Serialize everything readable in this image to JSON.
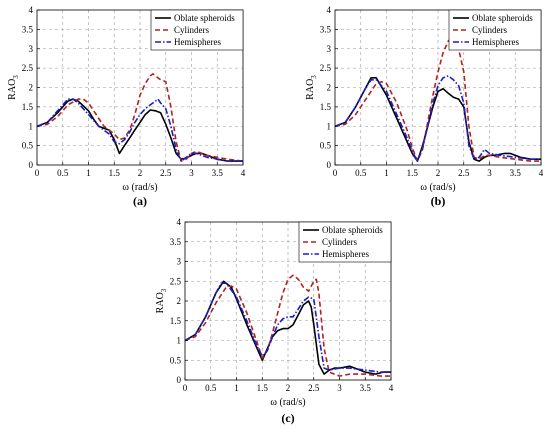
{
  "chart_data": [
    {
      "type": "line",
      "panel_label": "(a)",
      "xlabel": "ω (rad/s)",
      "ylabel": "RAO",
      "ylabel_sub": "3",
      "xlim": [
        0,
        4
      ],
      "ylim": [
        0,
        4
      ],
      "xticks": [
        "0",
        "0.5",
        "1",
        "1.5",
        "2",
        "2.5",
        "3",
        "3.5",
        "4"
      ],
      "yticks": [
        "0",
        "0.5",
        "1",
        "1.5",
        "2",
        "2.5",
        "3",
        "3.5",
        "4"
      ],
      "grid": true,
      "legend_position": "top-right",
      "series": [
        {
          "name": "Oblate spheroids",
          "color": "#000000",
          "dash": "solid",
          "x": [
            0,
            0.2,
            0.4,
            0.6,
            0.7,
            0.8,
            1.0,
            1.1,
            1.2,
            1.3,
            1.4,
            1.5,
            1.6,
            1.7,
            1.8,
            1.9,
            2.0,
            2.1,
            2.2,
            2.3,
            2.4,
            2.5,
            2.6,
            2.7,
            2.8,
            2.9,
            3.0,
            3.1,
            3.2,
            3.3,
            3.5,
            3.7,
            3.85,
            4.0
          ],
          "y": [
            1.0,
            1.1,
            1.35,
            1.65,
            1.7,
            1.65,
            1.4,
            1.18,
            1.0,
            0.95,
            0.9,
            0.65,
            0.3,
            0.5,
            0.7,
            0.9,
            1.1,
            1.3,
            1.42,
            1.4,
            1.35,
            1.05,
            0.7,
            0.3,
            0.15,
            0.18,
            0.25,
            0.3,
            0.3,
            0.25,
            0.15,
            0.1,
            0.1,
            0.1
          ]
        },
        {
          "name": "Cylinders",
          "color": "#b22222",
          "dash": "dashed",
          "x": [
            0,
            0.2,
            0.4,
            0.6,
            0.8,
            0.9,
            1.0,
            1.2,
            1.3,
            1.5,
            1.6,
            1.7,
            1.8,
            1.9,
            2.0,
            2.1,
            2.2,
            2.25,
            2.3,
            2.4,
            2.5,
            2.6,
            2.7,
            2.8,
            2.9,
            3.0,
            3.1,
            3.2,
            3.3,
            3.5,
            3.7,
            4.0
          ],
          "y": [
            1.0,
            1.05,
            1.25,
            1.55,
            1.7,
            1.7,
            1.6,
            1.2,
            1.0,
            0.8,
            0.65,
            0.7,
            0.9,
            1.3,
            1.8,
            2.1,
            2.3,
            2.35,
            2.3,
            2.2,
            2.15,
            1.5,
            0.6,
            0.1,
            0.15,
            0.3,
            0.35,
            0.3,
            0.25,
            0.2,
            0.15,
            0.1
          ]
        },
        {
          "name": "Hemispheres",
          "color": "#1c1cc8",
          "dash": "dashdot",
          "x": [
            0,
            0.2,
            0.4,
            0.6,
            0.7,
            0.8,
            1.0,
            1.2,
            1.4,
            1.5,
            1.6,
            1.7,
            1.8,
            1.9,
            2.0,
            2.1,
            2.2,
            2.3,
            2.35,
            2.4,
            2.5,
            2.6,
            2.7,
            2.8,
            2.9,
            3.0,
            3.1,
            3.2,
            3.3,
            3.5,
            3.7,
            4.0
          ],
          "y": [
            1.0,
            1.1,
            1.4,
            1.7,
            1.7,
            1.6,
            1.3,
            1.0,
            0.8,
            0.6,
            0.55,
            0.65,
            0.85,
            1.1,
            1.3,
            1.45,
            1.55,
            1.65,
            1.7,
            1.6,
            1.45,
            1.0,
            0.4,
            0.1,
            0.2,
            0.3,
            0.3,
            0.25,
            0.2,
            0.15,
            0.1,
            0.1
          ]
        }
      ]
    },
    {
      "type": "line",
      "panel_label": "(b)",
      "xlabel": "ω (rad/s)",
      "ylabel": "RAO",
      "ylabel_sub": "3",
      "xlim": [
        0,
        4
      ],
      "ylim": [
        0,
        4
      ],
      "xticks": [
        "0",
        "0.5",
        "1",
        "1.5",
        "2",
        "2.5",
        "3",
        "3.5",
        "4"
      ],
      "yticks": [
        "0",
        "0.5",
        "1",
        "1.5",
        "2",
        "2.5",
        "3",
        "3.5",
        "4"
      ],
      "grid": true,
      "legend_position": "top-right",
      "series": [
        {
          "name": "Oblate spheroids",
          "color": "#000000",
          "dash": "solid",
          "x": [
            0,
            0.2,
            0.4,
            0.6,
            0.7,
            0.8,
            1.0,
            1.2,
            1.4,
            1.5,
            1.6,
            1.7,
            1.8,
            1.9,
            2.0,
            2.1,
            2.2,
            2.3,
            2.4,
            2.5,
            2.6,
            2.7,
            2.8,
            2.9,
            3.0,
            3.1,
            3.3,
            3.4,
            3.6,
            3.8,
            4.0
          ],
          "y": [
            1.0,
            1.1,
            1.5,
            2.0,
            2.25,
            2.25,
            1.8,
            1.2,
            0.6,
            0.3,
            0.1,
            0.5,
            1.0,
            1.5,
            1.9,
            1.97,
            1.85,
            1.75,
            1.7,
            1.5,
            0.6,
            0.15,
            0.1,
            0.2,
            0.25,
            0.25,
            0.3,
            0.3,
            0.2,
            0.15,
            0.15
          ]
        },
        {
          "name": "Cylinders",
          "color": "#b22222",
          "dash": "dashed",
          "x": [
            0,
            0.2,
            0.4,
            0.6,
            0.8,
            0.9,
            1.0,
            1.2,
            1.4,
            1.5,
            1.6,
            1.7,
            1.8,
            1.9,
            2.0,
            2.1,
            2.2,
            2.3,
            2.4,
            2.5,
            2.6,
            2.7,
            2.8,
            2.9,
            3.0,
            3.2,
            3.5,
            3.8,
            4.0
          ],
          "y": [
            1.0,
            1.05,
            1.3,
            1.7,
            2.1,
            2.15,
            2.1,
            1.6,
            0.9,
            0.45,
            0.1,
            0.4,
            1.1,
            1.8,
            2.4,
            2.9,
            3.2,
            3.3,
            3.0,
            2.4,
            1.0,
            0.2,
            0.15,
            0.25,
            0.25,
            0.2,
            0.15,
            0.1,
            0.1
          ]
        },
        {
          "name": "Hemispheres",
          "color": "#1c1cc8",
          "dash": "dashdot",
          "x": [
            0,
            0.2,
            0.4,
            0.6,
            0.7,
            0.8,
            1.0,
            1.2,
            1.4,
            1.5,
            1.6,
            1.7,
            1.8,
            1.9,
            2.0,
            2.1,
            2.2,
            2.3,
            2.4,
            2.5,
            2.6,
            2.7,
            2.8,
            2.9,
            3.0,
            3.2,
            3.5,
            3.8,
            4.0
          ],
          "y": [
            1.0,
            1.1,
            1.5,
            2.0,
            2.2,
            2.2,
            1.9,
            1.3,
            0.7,
            0.35,
            0.1,
            0.45,
            1.0,
            1.6,
            2.05,
            2.25,
            2.3,
            2.2,
            2.05,
            1.6,
            0.5,
            0.15,
            0.2,
            0.4,
            0.3,
            0.25,
            0.2,
            0.15,
            0.15
          ]
        }
      ]
    },
    {
      "type": "line",
      "panel_label": "(c)",
      "xlabel": "ω (rad/s)",
      "ylabel": "RAO",
      "ylabel_sub": "3",
      "xlim": [
        0,
        4
      ],
      "ylim": [
        0,
        4
      ],
      "xticks": [
        "0",
        "0.5",
        "1",
        "1.5",
        "2",
        "2.5",
        "3",
        "3.5",
        "4"
      ],
      "yticks": [
        "0",
        "0.5",
        "1",
        "1.5",
        "2",
        "2.5",
        "3",
        "3.5",
        "4"
      ],
      "grid": true,
      "legend_position": "top-right",
      "series": [
        {
          "name": "Oblate spheroids",
          "color": "#000000",
          "dash": "solid",
          "x": [
            0,
            0.2,
            0.4,
            0.6,
            0.75,
            0.9,
            1.0,
            1.2,
            1.4,
            1.5,
            1.6,
            1.7,
            1.8,
            1.9,
            2.0,
            2.1,
            2.2,
            2.3,
            2.4,
            2.45,
            2.5,
            2.6,
            2.7,
            2.8,
            2.9,
            3.0,
            3.2,
            3.5,
            3.7,
            3.85,
            4.0
          ],
          "y": [
            1.0,
            1.15,
            1.6,
            2.2,
            2.5,
            2.35,
            2.05,
            1.4,
            0.8,
            0.5,
            0.8,
            1.1,
            1.25,
            1.3,
            1.3,
            1.4,
            1.65,
            1.9,
            2.0,
            1.85,
            1.4,
            0.4,
            0.15,
            0.25,
            0.3,
            0.3,
            0.35,
            0.2,
            0.15,
            0.2,
            0.2
          ]
        },
        {
          "name": "Cylinders",
          "color": "#b22222",
          "dash": "dashed",
          "x": [
            0,
            0.2,
            0.4,
            0.6,
            0.8,
            0.9,
            1.0,
            1.2,
            1.4,
            1.5,
            1.6,
            1.7,
            1.8,
            1.9,
            2.0,
            2.1,
            2.2,
            2.3,
            2.4,
            2.5,
            2.55,
            2.6,
            2.7,
            2.8,
            3.0,
            3.2,
            3.5,
            3.8,
            4.0
          ],
          "y": [
            1.0,
            1.1,
            1.45,
            1.95,
            2.35,
            2.38,
            2.3,
            1.7,
            0.95,
            0.55,
            0.75,
            1.2,
            1.7,
            2.2,
            2.55,
            2.65,
            2.55,
            2.35,
            2.25,
            2.5,
            2.55,
            2.2,
            0.8,
            0.2,
            0.1,
            0.15,
            0.15,
            0.1,
            0.1
          ]
        },
        {
          "name": "Hemispheres",
          "color": "#1c1cc8",
          "dash": "dashdot",
          "x": [
            0,
            0.2,
            0.4,
            0.6,
            0.7,
            0.8,
            1.0,
            1.2,
            1.4,
            1.5,
            1.6,
            1.7,
            1.8,
            1.9,
            2.0,
            2.1,
            2.2,
            2.3,
            2.4,
            2.5,
            2.6,
            2.7,
            2.8,
            3.0,
            3.2,
            3.5,
            3.8,
            4.0
          ],
          "y": [
            1.0,
            1.15,
            1.6,
            2.2,
            2.45,
            2.45,
            2.1,
            1.5,
            0.85,
            0.6,
            0.75,
            1.1,
            1.4,
            1.55,
            1.6,
            1.6,
            1.8,
            2.0,
            2.1,
            2.05,
            1.1,
            0.3,
            0.25,
            0.3,
            0.3,
            0.25,
            0.2,
            0.2
          ]
        }
      ]
    }
  ]
}
